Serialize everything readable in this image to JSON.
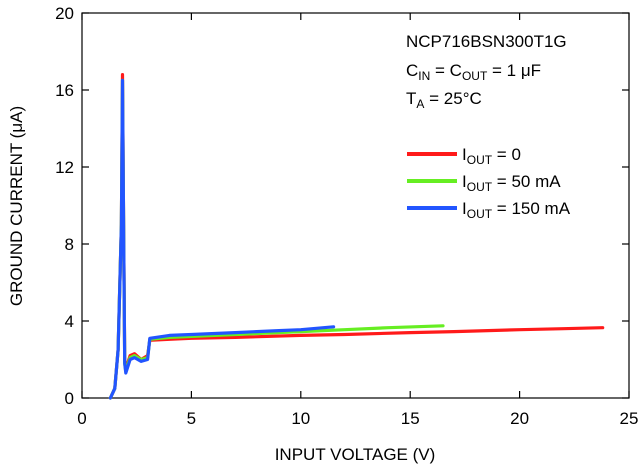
{
  "chart_data": {
    "type": "line",
    "xlabel": "INPUT VOLTAGE (V)",
    "ylabel": "GROUND CURRENT (μA)",
    "xlim": [
      0,
      25
    ],
    "ylim": [
      0,
      20
    ],
    "x_ticks": [
      "0",
      "5",
      "10",
      "15",
      "20",
      "25"
    ],
    "y_ticks": [
      "0",
      "4",
      "8",
      "12",
      "16",
      "20"
    ],
    "grid": false,
    "legend_position": "right",
    "annotations": {
      "part_number": "NCP716BSN300T1G",
      "cap_line": {
        "c1": "C",
        "c1_sub": "IN",
        "mid": " = C",
        "c2_sub": "OUT",
        "rest": " = 1 μF"
      },
      "temp_line": {
        "t": "T",
        "t_sub": "A",
        "rest": " = 25°C"
      }
    },
    "series": [
      {
        "name": "IOUT = 0",
        "legend": {
          "main": "I",
          "sub": "OUT",
          "rest": " = 0"
        },
        "color": "#ff1a1a",
        "points": [
          [
            1.3,
            0
          ],
          [
            1.5,
            0.5
          ],
          [
            1.65,
            2.5
          ],
          [
            1.8,
            9.0
          ],
          [
            1.85,
            16.8
          ],
          [
            1.9,
            9.0
          ],
          [
            1.95,
            2.0
          ],
          [
            2.0,
            1.5
          ],
          [
            2.2,
            2.2
          ],
          [
            2.4,
            2.3
          ],
          [
            2.7,
            2.0
          ],
          [
            3.0,
            2.2
          ],
          [
            3.1,
            3.0
          ],
          [
            4.0,
            3.05
          ],
          [
            5.0,
            3.1
          ],
          [
            7.0,
            3.15
          ],
          [
            10.0,
            3.25
          ],
          [
            12.0,
            3.3
          ],
          [
            15.0,
            3.4
          ],
          [
            17.0,
            3.45
          ],
          [
            20.0,
            3.55
          ],
          [
            22.0,
            3.6
          ],
          [
            23.8,
            3.65
          ]
        ]
      },
      {
        "name": "IOUT = 50 mA",
        "legend": {
          "main": "I",
          "sub": "OUT",
          "rest": " = 50 mA"
        },
        "color": "#66ee22",
        "points": [
          [
            1.3,
            0
          ],
          [
            1.5,
            0.5
          ],
          [
            1.65,
            2.5
          ],
          [
            1.8,
            9.0
          ],
          [
            1.85,
            16.5
          ],
          [
            1.9,
            9.0
          ],
          [
            1.95,
            1.8
          ],
          [
            2.0,
            1.4
          ],
          [
            2.2,
            2.1
          ],
          [
            2.4,
            2.2
          ],
          [
            2.7,
            2.0
          ],
          [
            3.0,
            2.1
          ],
          [
            3.1,
            3.05
          ],
          [
            4.0,
            3.15
          ],
          [
            5.0,
            3.2
          ],
          [
            7.0,
            3.3
          ],
          [
            10.0,
            3.45
          ],
          [
            12.0,
            3.55
          ],
          [
            14.0,
            3.65
          ],
          [
            16.5,
            3.75
          ]
        ]
      },
      {
        "name": "IOUT = 150 mA",
        "legend": {
          "main": "I",
          "sub": "OUT",
          "rest": " = 150 mA"
        },
        "color": "#2255ff",
        "points": [
          [
            1.3,
            0
          ],
          [
            1.5,
            0.5
          ],
          [
            1.65,
            2.5
          ],
          [
            1.8,
            9.0
          ],
          [
            1.85,
            16.5
          ],
          [
            1.9,
            9.0
          ],
          [
            1.95,
            1.8
          ],
          [
            2.0,
            1.3
          ],
          [
            2.2,
            2.0
          ],
          [
            2.4,
            2.1
          ],
          [
            2.7,
            1.9
          ],
          [
            3.0,
            2.0
          ],
          [
            3.1,
            3.1
          ],
          [
            4.0,
            3.25
          ],
          [
            5.0,
            3.3
          ],
          [
            7.0,
            3.4
          ],
          [
            9.0,
            3.5
          ],
          [
            10.0,
            3.55
          ],
          [
            11.5,
            3.7
          ]
        ]
      }
    ]
  }
}
